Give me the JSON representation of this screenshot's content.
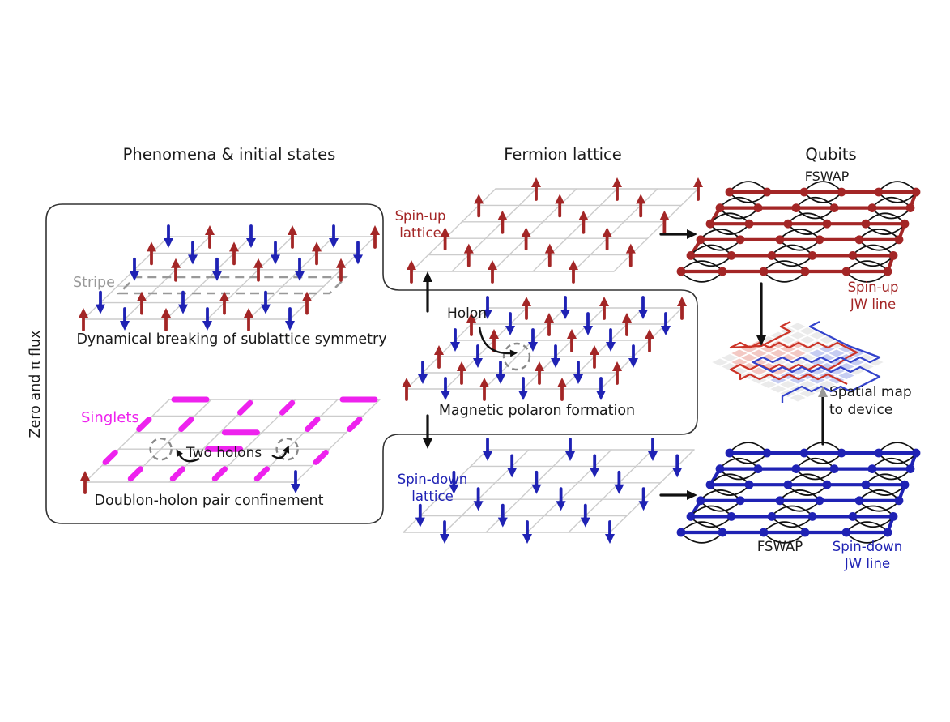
{
  "titles": {
    "left": "Phenomena & initial states",
    "middle": "Fermion lattice",
    "right": "Qubits"
  },
  "labels": {
    "flux": "Zero and π flux",
    "stripe": "Stripe",
    "stripe_caption": "Dynamical breaking of sublattice symmetry",
    "singlets": "Singlets",
    "two_holons": "Two holons",
    "doublon_caption": "Doublon-holon pair confinement",
    "spin_up_1": "Spin-up",
    "spin_up_2": "lattice",
    "holon": "Holon",
    "polaron_caption": "Magnetic polaron formation",
    "spin_down_1": "Spin-down",
    "spin_down_2": "lattice",
    "fswap_top": "FSWAP",
    "fswap_bottom": "FSWAP",
    "jw_up_1": "Spin-up",
    "jw_up_2": "JW line",
    "jw_down_1": "Spin-down",
    "jw_down_2": "JW line",
    "spatial_1": "Spatial map",
    "spatial_2": "to device"
  },
  "colors": {
    "spin_up": "#a32626",
    "spin_down": "#1f22b4",
    "singlet": "#ee22ee",
    "grid": "#cccccc",
    "annotation": "#111111",
    "muted": "#999999",
    "dashed_circle": "#888888",
    "device_red": "#cc3327",
    "device_blue": "#3343cc",
    "device_cell": "#ebebeb",
    "device_red_tint": "#f3c9c4",
    "device_blue_tint": "#c6cdf2",
    "outline": "#333333"
  },
  "lattices": {
    "stripe": {
      "pattern": [
        "dududu",
        "ududud",
        "dududu",
        "......",
        "dududu",
        "ududud"
      ]
    },
    "singlet": {
      "pattern": [
        "......",
        "......",
        "......",
        ".o..o.",
        "......",
        "u....d"
      ],
      "bars": [
        [
          0,
          0,
          0,
          1
        ],
        [
          0,
          4,
          0,
          5
        ],
        [
          2,
          2,
          2,
          3
        ],
        [
          3,
          2,
          3,
          3
        ],
        [
          0,
          2,
          1,
          2
        ],
        [
          0,
          3,
          1,
          3
        ],
        [
          1,
          0,
          2,
          0
        ],
        [
          1,
          1,
          2,
          1
        ],
        [
          1,
          4,
          2,
          4
        ],
        [
          1,
          5,
          2,
          5
        ],
        [
          3,
          0,
          4,
          0
        ],
        [
          3,
          5,
          4,
          5
        ],
        [
          4,
          1,
          5,
          1
        ],
        [
          4,
          2,
          5,
          2
        ],
        [
          4,
          3,
          5,
          3
        ],
        [
          4,
          4,
          5,
          4
        ]
      ]
    },
    "spin_up": {
      "pattern": [
        ".u.u.u",
        "u.u.u.",
        ".u.u.u",
        "u.u.u.",
        ".u.u.u",
        "u.u.u."
      ]
    },
    "polaron": {
      "pattern": [
        "dududu",
        "ududud",
        "dududu",
        "udodud",
        "dududu",
        "ududud"
      ]
    },
    "spin_down": {
      "pattern": [
        "d.d.d.",
        ".d.d.d",
        "d.d.d.",
        ".d.d.d",
        "d.d.d.",
        ".d.d.d"
      ]
    }
  },
  "serpentines": {
    "rows": 6,
    "dots_per_row": 6,
    "swap_pairs": [
      [
        0,
        1
      ],
      [
        2,
        3
      ],
      [
        4,
        5
      ]
    ]
  }
}
